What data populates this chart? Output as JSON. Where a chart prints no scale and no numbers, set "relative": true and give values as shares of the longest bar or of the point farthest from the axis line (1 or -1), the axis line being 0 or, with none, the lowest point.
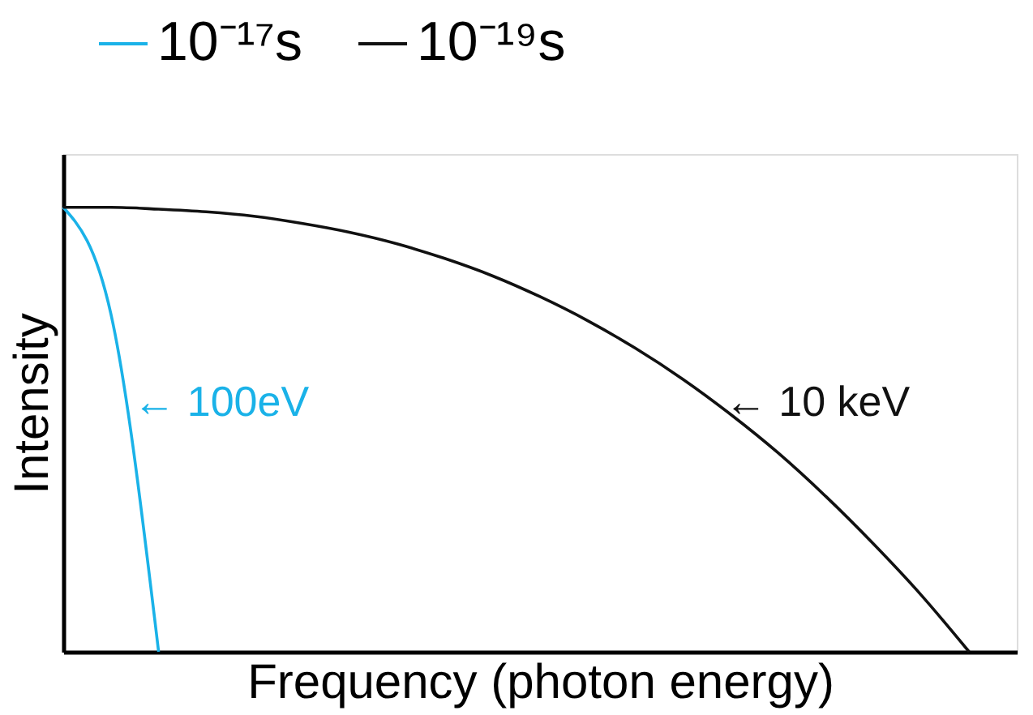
{
  "chart_data": {
    "type": "line",
    "relative": true,
    "xlabel": "Frequency (photon energy)",
    "ylabel": "Intensity",
    "categories": [
      null,
      null,
      null,
      null,
      null,
      null,
      null,
      null,
      null,
      null,
      null,
      null,
      null,
      null,
      null,
      null,
      null,
      null,
      null,
      null,
      null
    ],
    "series": [
      {
        "name": "10⁻¹⁷s",
        "color": "#1ab2e8",
        "values": [
          1,
          0.76,
          0,
          null,
          null,
          null,
          null,
          null,
          null,
          null,
          null,
          null,
          null,
          null,
          null,
          null,
          null,
          null,
          null,
          null,
          null
        ]
      },
      {
        "name": "10⁻¹⁹s",
        "color": "#111111",
        "values": [
          1,
          1,
          0.996,
          0.99,
          0.98,
          0.964,
          0.944,
          0.918,
          0.885,
          0.846,
          0.799,
          0.745,
          0.683,
          0.613,
          0.534,
          0.447,
          0.349,
          0.242,
          0.127,
          0,
          null
        ]
      }
    ],
    "annotations": [
      "← 100eV",
      "← 10 keV"
    ],
    "legend": "top",
    "grid": false,
    "marker": "none",
    "line_style": "solid"
  }
}
